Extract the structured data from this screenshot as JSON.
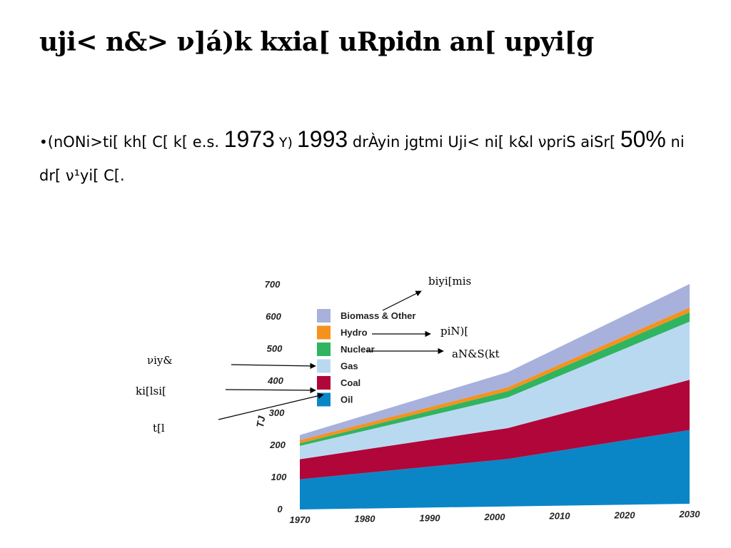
{
  "slide": {
    "title": "uji< n&> ν]á)k  kxia[ uRpidn an[ upyi[g",
    "bullet": {
      "dot": "•",
      "t1": "(nONi>ti[ kh[ C[ k[ e.s. ",
      "y1": "1973",
      "t2": " Y) ",
      "y2": "1993",
      "t3": " drÀyin jgtmi Uji< ni[ k&l νpriS aiSr[ ",
      "pct": "50%",
      "t4": " ni dr[ ν¹yi[ C[."
    }
  },
  "chart_data": {
    "type": "area",
    "stacked": true,
    "ylabel": "TJ",
    "xlabel": "",
    "ylim": [
      0,
      700
    ],
    "yticks": [
      "0",
      "100",
      "200",
      "300",
      "400",
      "500",
      "600",
      "700"
    ],
    "xticks": [
      "1970",
      "1980",
      "1990",
      "2000",
      "2010",
      "2020",
      "2030"
    ],
    "x": [
      1970,
      2002,
      2030
    ],
    "series": [
      {
        "name": "Oil",
        "color": "#0a86c6",
        "values": [
          95,
          150,
          235
        ]
      },
      {
        "name": "Coal",
        "color": "#b0063a",
        "values": [
          63,
          98,
          160
        ]
      },
      {
        "name": "Gas",
        "color": "#b9d9f1",
        "values": [
          42,
          97,
          185
        ]
      },
      {
        "name": "Nuclear",
        "color": "#2fb460",
        "values": [
          8,
          20,
          30
        ]
      },
      {
        "name": "Hydro",
        "color": "#f5921e",
        "values": [
          10,
          12,
          15
        ]
      },
      {
        "name": "Biomass & Other",
        "color": "#a7b1dc",
        "values": [
          16,
          48,
          75
        ]
      }
    ],
    "legend_order": [
      "Biomass & Other",
      "Hydro",
      "Nuclear",
      "Gas",
      "Coal",
      "Oil"
    ],
    "legend_position": "top-left",
    "annotations": [
      {
        "text": "biyi[mis",
        "target": "Biomass & Other"
      },
      {
        "text": "piN)[",
        "target": "Hydro"
      },
      {
        "text": "aN&S(kt",
        "target": "Nuclear"
      },
      {
        "text": "νiy&",
        "target": "Gas"
      },
      {
        "text": "ki[lsi[",
        "target": "Coal"
      },
      {
        "text": "t[l",
        "target": "Oil"
      }
    ]
  }
}
